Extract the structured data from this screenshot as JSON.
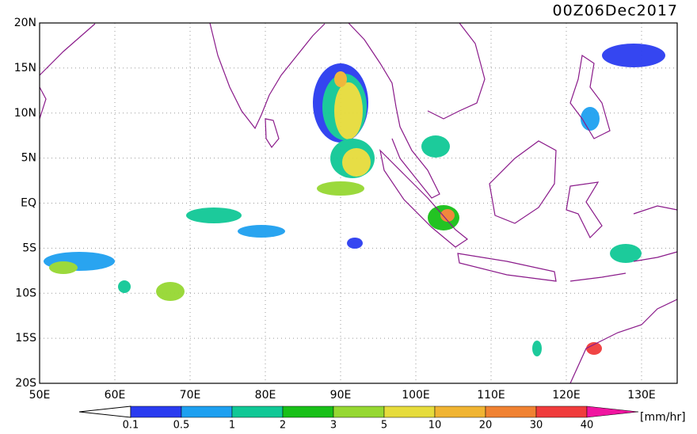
{
  "title": "00Z06Dec2017",
  "lat_labels": [
    "20N",
    "15N",
    "10N",
    "5N",
    "EQ",
    "5S",
    "10S",
    "15S",
    "20S"
  ],
  "lon_labels": [
    "50E",
    "60E",
    "70E",
    "80E",
    "90E",
    "100E",
    "110E",
    "120E",
    "130E"
  ],
  "colorbar": {
    "labels": [
      "0.1",
      "0.5",
      "1",
      "2",
      "3",
      "5",
      "10",
      "20",
      "30",
      "40"
    ],
    "colors": [
      "#2a3cf0",
      "#1ea0f0",
      "#10c896",
      "#18c018",
      "#96d832",
      "#e6dc3c",
      "#f0b432",
      "#f08232",
      "#f03c3c",
      "#f014a0"
    ],
    "unit": "[mm/hr]"
  }
}
